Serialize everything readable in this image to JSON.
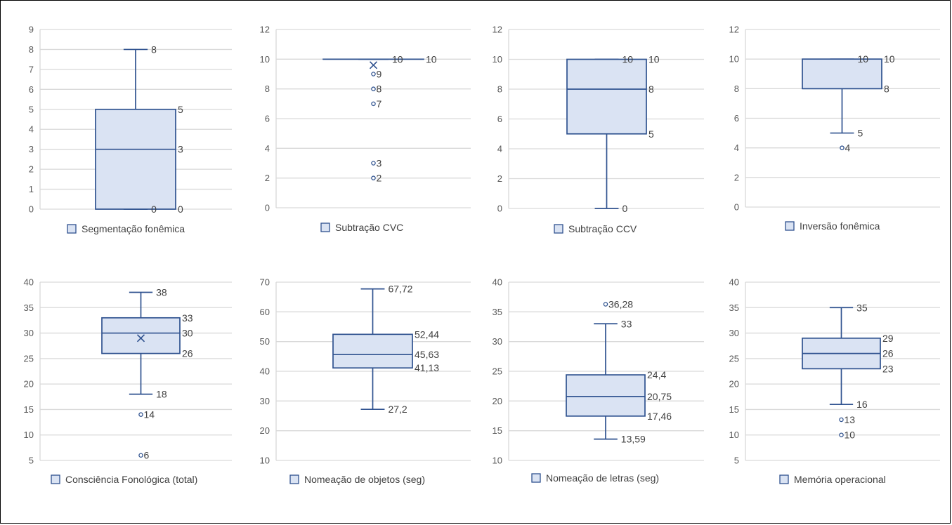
{
  "chart_data": [
    {
      "type": "box",
      "title": "",
      "legend": "Segmentação fonêmica",
      "yticks": [
        "0",
        "1",
        "2",
        "3",
        "4",
        "5",
        "6",
        "7",
        "8",
        "9"
      ],
      "ylim": [
        0,
        9
      ],
      "min": 0,
      "q1": 0,
      "median": 3,
      "q3": 5,
      "max": 8,
      "mean": null,
      "outliers": [],
      "labels": [
        {
          "text": "8",
          "y": 8,
          "pos": "whisker"
        },
        {
          "text": "5",
          "y": 5,
          "pos": "box"
        },
        {
          "text": "3",
          "y": 3,
          "pos": "box"
        },
        {
          "text": "0",
          "y": 0,
          "pos": "whisker"
        },
        {
          "text": "0",
          "y": 0,
          "pos": "box"
        }
      ]
    },
    {
      "type": "box",
      "title": "",
      "legend": "Subtração CVC",
      "yticks": [
        "0",
        "2",
        "4",
        "6",
        "8",
        "10",
        "12"
      ],
      "ylim": [
        0,
        12
      ],
      "min": 10,
      "q1": 10,
      "median": 10,
      "q3": 10,
      "max": 10,
      "mean": 9.6,
      "outliers": [
        9,
        8,
        7,
        3,
        2
      ],
      "labels": [
        {
          "text": "10",
          "y": 10,
          "pos": "whisker"
        },
        {
          "text": "10",
          "y": 10,
          "pos": "box"
        },
        {
          "text": "9",
          "y": 9,
          "pos": "outlier"
        },
        {
          "text": "8",
          "y": 8,
          "pos": "outlier"
        },
        {
          "text": "7",
          "y": 7,
          "pos": "outlier"
        },
        {
          "text": "3",
          "y": 3,
          "pos": "outlier"
        },
        {
          "text": "2",
          "y": 2,
          "pos": "outlier"
        }
      ]
    },
    {
      "type": "box",
      "title": "",
      "legend": "Subtração CCV",
      "yticks": [
        "0",
        "2",
        "4",
        "6",
        "8",
        "10",
        "12"
      ],
      "ylim": [
        0,
        12
      ],
      "min": 0,
      "q1": 5,
      "median": 8,
      "q3": 10,
      "max": 10,
      "mean": null,
      "outliers": [],
      "labels": [
        {
          "text": "10",
          "y": 10,
          "pos": "whisker"
        },
        {
          "text": "10",
          "y": 10,
          "pos": "box"
        },
        {
          "text": "8",
          "y": 8,
          "pos": "box"
        },
        {
          "text": "5",
          "y": 5,
          "pos": "box"
        },
        {
          "text": "0",
          "y": 0,
          "pos": "whisker"
        }
      ]
    },
    {
      "type": "box",
      "title": "",
      "legend": "Inversão fonêmica",
      "yticks": [
        "0",
        "2",
        "4",
        "6",
        "8",
        "10",
        "12"
      ],
      "ylim": [
        0,
        12
      ],
      "min": 5,
      "q1": 8,
      "median": 8,
      "q3": 10,
      "max": 10,
      "mean": null,
      "outliers": [
        4
      ],
      "labels": [
        {
          "text": "10",
          "y": 10,
          "pos": "whisker"
        },
        {
          "text": "10",
          "y": 10,
          "pos": "box"
        },
        {
          "text": "8",
          "y": 8,
          "pos": "box"
        },
        {
          "text": "5",
          "y": 5,
          "pos": "whisker"
        },
        {
          "text": "4",
          "y": 4,
          "pos": "outlier"
        }
      ]
    },
    {
      "type": "box",
      "title": "",
      "legend": "Consciência Fonológica (total)",
      "yticks": [
        "5",
        "10",
        "15",
        "20",
        "25",
        "30",
        "35",
        "40"
      ],
      "ylim": [
        5,
        40
      ],
      "min": 18,
      "q1": 26,
      "median": 30,
      "q3": 33,
      "max": 38,
      "mean": 29,
      "outliers": [
        14,
        6
      ],
      "labels": [
        {
          "text": "38",
          "y": 38,
          "pos": "whisker"
        },
        {
          "text": "33",
          "y": 33,
          "pos": "box"
        },
        {
          "text": "30",
          "y": 30,
          "pos": "box"
        },
        {
          "text": "26",
          "y": 26,
          "pos": "box"
        },
        {
          "text": "18",
          "y": 18,
          "pos": "whisker"
        },
        {
          "text": "14",
          "y": 14,
          "pos": "outlier"
        },
        {
          "text": "6",
          "y": 6,
          "pos": "outlier"
        }
      ]
    },
    {
      "type": "box",
      "title": "",
      "legend": "Nomeação de objetos (seg)",
      "yticks": [
        "10",
        "20",
        "30",
        "40",
        "50",
        "60",
        "70"
      ],
      "ylim": [
        10,
        70
      ],
      "min": 27.2,
      "q1": 41.13,
      "median": 45.63,
      "q3": 52.44,
      "max": 67.72,
      "mean": null,
      "outliers": [],
      "labels": [
        {
          "text": "67,72",
          "y": 67.72,
          "pos": "whisker"
        },
        {
          "text": "52,44",
          "y": 52.44,
          "pos": "box"
        },
        {
          "text": "45,63",
          "y": 45.63,
          "pos": "box"
        },
        {
          "text": "41,13",
          "y": 41.13,
          "pos": "box"
        },
        {
          "text": "27,2",
          "y": 27.2,
          "pos": "whisker"
        }
      ]
    },
    {
      "type": "box",
      "title": "",
      "legend": "Nomeação de letras (seg)",
      "yticks": [
        "10",
        "15",
        "20",
        "25",
        "30",
        "35",
        "40"
      ],
      "ylim": [
        10,
        40
      ],
      "min": 13.59,
      "q1": 17.46,
      "median": 20.75,
      "q3": 24.4,
      "max": 33,
      "mean": null,
      "outliers": [
        36.28
      ],
      "labels": [
        {
          "text": "36,28",
          "y": 36.28,
          "pos": "outlier"
        },
        {
          "text": "33",
          "y": 33,
          "pos": "whisker"
        },
        {
          "text": "24,4",
          "y": 24.4,
          "pos": "box"
        },
        {
          "text": "20,75",
          "y": 20.75,
          "pos": "box"
        },
        {
          "text": "17,46",
          "y": 17.46,
          "pos": "box"
        },
        {
          "text": "13,59",
          "y": 13.59,
          "pos": "whisker"
        }
      ]
    },
    {
      "type": "box",
      "title": "",
      "legend": "Memória operacional",
      "yticks": [
        "5",
        "10",
        "15",
        "20",
        "25",
        "30",
        "35",
        "40"
      ],
      "ylim": [
        5,
        40
      ],
      "min": 16,
      "q1": 23,
      "median": 26,
      "q3": 29,
      "max": 35,
      "mean": null,
      "outliers": [
        13,
        10
      ],
      "labels": [
        {
          "text": "35",
          "y": 35,
          "pos": "whisker"
        },
        {
          "text": "29",
          "y": 29,
          "pos": "box"
        },
        {
          "text": "26",
          "y": 26,
          "pos": "box"
        },
        {
          "text": "23",
          "y": 23,
          "pos": "box"
        },
        {
          "text": "16",
          "y": 16,
          "pos": "whisker"
        },
        {
          "text": "13",
          "y": 13,
          "pos": "outlier"
        },
        {
          "text": "10",
          "y": 10,
          "pos": "outlier"
        }
      ]
    }
  ],
  "colors": {
    "box_fill": "#dae3f3",
    "stroke": "#2f528f",
    "grid": "#d9d9d9",
    "text": "#595959"
  }
}
